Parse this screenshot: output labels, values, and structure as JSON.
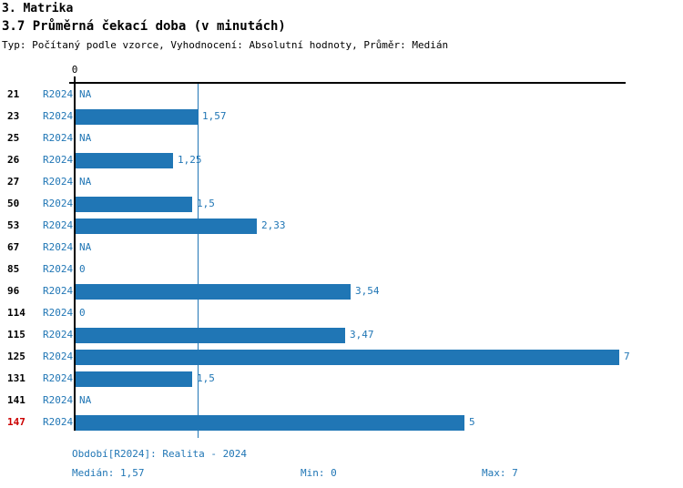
{
  "colors": {
    "bar_blue": "#2076b5",
    "text_blue": "#2076b5",
    "axis_black": "#000000",
    "highlight_red": "#cc0000",
    "background": "#ffffff"
  },
  "header": {
    "title": "3. Matrika",
    "subtitle": "3.7 Průměrná čekací doba (v minutách)",
    "meta": "Typ: Počítaný podle vzorce, Vyhodnocení: Absolutní hodnoty, Průměr: Medián"
  },
  "chart_data": {
    "type": "bar",
    "orientation": "horizontal",
    "title": "3.7 Průměrná čekací doba (v minutách)",
    "axis_zero_label": "0",
    "xlim": [
      0,
      7
    ],
    "median_line_value": 1.57,
    "grid": false,
    "series_name": "R2024",
    "rows": [
      {
        "label": "21",
        "period": "R2024",
        "display": "NA",
        "value": null,
        "highlight": false
      },
      {
        "label": "23",
        "period": "R2024",
        "display": "1,57",
        "value": 1.57,
        "highlight": false
      },
      {
        "label": "25",
        "period": "R2024",
        "display": "NA",
        "value": null,
        "highlight": false
      },
      {
        "label": "26",
        "period": "R2024",
        "display": "1,25",
        "value": 1.25,
        "highlight": false
      },
      {
        "label": "27",
        "period": "R2024",
        "display": "NA",
        "value": null,
        "highlight": false
      },
      {
        "label": "50",
        "period": "R2024",
        "display": "1,5",
        "value": 1.5,
        "highlight": false
      },
      {
        "label": "53",
        "period": "R2024",
        "display": "2,33",
        "value": 2.33,
        "highlight": false
      },
      {
        "label": "67",
        "period": "R2024",
        "display": "NA",
        "value": null,
        "highlight": false
      },
      {
        "label": "85",
        "period": "R2024",
        "display": "0",
        "value": 0,
        "highlight": false
      },
      {
        "label": "96",
        "period": "R2024",
        "display": "3,54",
        "value": 3.54,
        "highlight": false
      },
      {
        "label": "114",
        "period": "R2024",
        "display": "0",
        "value": 0,
        "highlight": false
      },
      {
        "label": "115",
        "period": "R2024",
        "display": "3,47",
        "value": 3.47,
        "highlight": false
      },
      {
        "label": "125",
        "period": "R2024",
        "display": "7",
        "value": 7,
        "highlight": false
      },
      {
        "label": "131",
        "period": "R2024",
        "display": "1,5",
        "value": 1.5,
        "highlight": false
      },
      {
        "label": "141",
        "period": "R2024",
        "display": "NA",
        "value": null,
        "highlight": false
      },
      {
        "label": "147",
        "period": "R2024",
        "display": "5",
        "value": 5,
        "highlight": true
      }
    ]
  },
  "footer": {
    "period_info": "Období[R2024]: Realita - 2024",
    "median": "Medián: 1,57",
    "min": "Min: 0",
    "max": "Max: 7"
  }
}
